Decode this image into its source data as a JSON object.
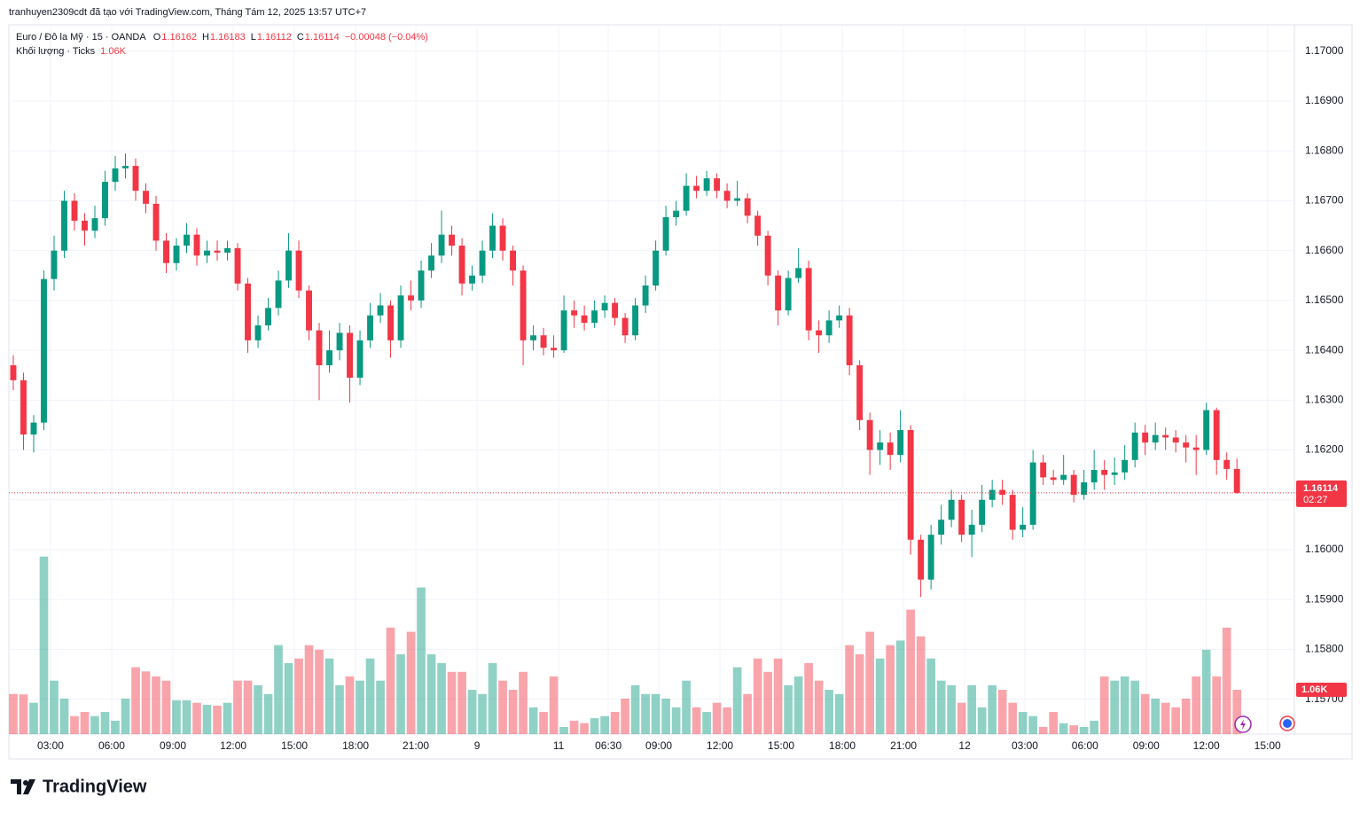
{
  "chart_data": {
    "type": "candlestick",
    "attribution": "tranhuyen2309cdt đã tạo với TradingView.com, Tháng Tám 12, 2025 13:57 UTC+7",
    "symbol": "Euro / Đô la Mỹ · 15 · OANDA",
    "ohlc_letters": [
      "O",
      "H",
      "L",
      "C"
    ],
    "change": "−0.00048 (−0.04%)",
    "countdown": "02:27",
    "brand": "TradingView",
    "up_color": "#089981",
    "down_color": "#f23645",
    "open": [
      1.1637,
      1.1634,
      1.16231,
      1.16255,
      1.16543,
      1.166,
      1.167,
      1.1666,
      1.1664,
      1.16665,
      1.16738,
      1.16765,
      1.1677,
      1.1672,
      1.16694,
      1.1662,
      1.16575,
      1.1661,
      1.16632,
      1.1659,
      1.166,
      1.16596,
      1.16605,
      1.16534,
      1.1642,
      1.1645,
      1.16485,
      1.1654,
      1.166,
      1.1652,
      1.1644,
      1.1637,
      1.164,
      1.16435,
      1.16345,
      1.1642,
      1.1647,
      1.1649,
      1.1642,
      1.1651,
      1.165,
      1.1656,
      1.1659,
      1.16632,
      1.1661,
      1.16534,
      1.1655,
      1.166,
      1.1665,
      1.166,
      1.1656,
      1.1642,
      1.1643,
      1.16405,
      1.164,
      1.1648,
      1.1647,
      1.16455,
      1.1648,
      1.16495,
      1.16465,
      1.1643,
      1.1649,
      1.1653,
      1.166,
      1.16667,
      1.1668,
      1.1673,
      1.1672,
      1.16745,
      1.1672,
      1.167,
      1.16705,
      1.1667,
      1.1663,
      1.1655,
      1.1648,
      1.16545,
      1.16565,
      1.1644,
      1.1643,
      1.1646,
      1.1647,
      1.1637,
      1.1626,
      1.162,
      1.16215,
      1.1619,
      1.1624,
      1.1602,
      1.1594,
      1.1603,
      1.1606,
      1.161,
      1.1603,
      1.1605,
      1.161,
      1.1612,
      1.1611,
      1.1604,
      1.1605,
      1.16175,
      1.16145,
      1.1614,
      1.1615,
      1.1611,
      1.16135,
      1.1616,
      1.1615,
      1.16155,
      1.1618,
      1.16235,
      1.16215,
      1.1623,
      1.16225,
      1.16215,
      1.16205,
      1.162,
      1.1628,
      1.1618,
      1.16162
    ],
    "high": [
      1.1639,
      1.16355,
      1.1627,
      1.1656,
      1.1663,
      1.1672,
      1.16715,
      1.16675,
      1.1669,
      1.1676,
      1.1679,
      1.16795,
      1.16785,
      1.16735,
      1.1671,
      1.16635,
      1.16625,
      1.16655,
      1.16645,
      1.1662,
      1.1662,
      1.1662,
      1.16615,
      1.16545,
      1.1647,
      1.16505,
      1.1656,
      1.16635,
      1.1662,
      1.1653,
      1.16455,
      1.1644,
      1.16455,
      1.1645,
      1.1644,
      1.16495,
      1.16515,
      1.165,
      1.1653,
      1.1654,
      1.1658,
      1.16615,
      1.1668,
      1.1665,
      1.16625,
      1.1657,
      1.1662,
      1.16675,
      1.16665,
      1.1661,
      1.1657,
      1.1645,
      1.16445,
      1.1643,
      1.1651,
      1.165,
      1.1649,
      1.165,
      1.1651,
      1.16505,
      1.16475,
      1.16505,
      1.1655,
      1.1662,
      1.1669,
      1.167,
      1.16755,
      1.1675,
      1.1676,
      1.16755,
      1.16735,
      1.1674,
      1.16715,
      1.1668,
      1.1664,
      1.1656,
      1.1656,
      1.16605,
      1.1658,
      1.1646,
      1.1648,
      1.1649,
      1.16485,
      1.1638,
      1.16275,
      1.1624,
      1.16235,
      1.1628,
      1.1625,
      1.1603,
      1.1605,
      1.1609,
      1.1612,
      1.1611,
      1.1608,
      1.1613,
      1.1614,
      1.1614,
      1.1612,
      1.16085,
      1.162,
      1.1619,
      1.1616,
      1.1619,
      1.1616,
      1.1616,
      1.162,
      1.1618,
      1.16185,
      1.1621,
      1.16255,
      1.1625,
      1.16255,
      1.16245,
      1.1624,
      1.1623,
      1.1623,
      1.16295,
      1.16285,
      1.16195,
      1.16183
    ],
    "low": [
      1.1632,
      1.162,
      1.16195,
      1.1624,
      1.1652,
      1.16585,
      1.1664,
      1.1661,
      1.16625,
      1.1665,
      1.1672,
      1.16745,
      1.167,
      1.16675,
      1.166,
      1.16555,
      1.1656,
      1.16595,
      1.1657,
      1.16575,
      1.1658,
      1.1658,
      1.1652,
      1.16395,
      1.16405,
      1.1644,
      1.1647,
      1.16525,
      1.16505,
      1.1642,
      1.163,
      1.16355,
      1.1638,
      1.16295,
      1.1633,
      1.16405,
      1.16455,
      1.16385,
      1.16405,
      1.1648,
      1.16485,
      1.16545,
      1.16575,
      1.1659,
      1.1651,
      1.1652,
      1.16535,
      1.16585,
      1.1658,
      1.1653,
      1.1637,
      1.164,
      1.1639,
      1.16385,
      1.16395,
      1.16445,
      1.1644,
      1.16445,
      1.16465,
      1.1645,
      1.16415,
      1.1642,
      1.16475,
      1.1652,
      1.1659,
      1.1665,
      1.1667,
      1.16705,
      1.1671,
      1.16705,
      1.16685,
      1.1669,
      1.16655,
      1.1661,
      1.1653,
      1.1645,
      1.1647,
      1.16535,
      1.1642,
      1.16395,
      1.16415,
      1.16445,
      1.1635,
      1.1624,
      1.1615,
      1.1617,
      1.1616,
      1.16175,
      1.1599,
      1.15905,
      1.1592,
      1.1601,
      1.16045,
      1.16015,
      1.15985,
      1.16035,
      1.16085,
      1.1609,
      1.1602,
      1.16025,
      1.1604,
      1.1613,
      1.1613,
      1.1613,
      1.16095,
      1.161,
      1.1612,
      1.1612,
      1.1613,
      1.1614,
      1.16165,
      1.1619,
      1.162,
      1.162,
      1.16195,
      1.16175,
      1.1615,
      1.1619,
      1.1615,
      1.1614,
      1.16112
    ],
    "close": [
      1.1634,
      1.16231,
      1.16255,
      1.16543,
      1.166,
      1.167,
      1.1666,
      1.1664,
      1.16665,
      1.16738,
      1.16765,
      1.1677,
      1.1672,
      1.16694,
      1.1662,
      1.16575,
      1.1661,
      1.16632,
      1.1659,
      1.166,
      1.16596,
      1.16605,
      1.16534,
      1.1642,
      1.1645,
      1.16485,
      1.1654,
      1.166,
      1.1652,
      1.1644,
      1.1637,
      1.164,
      1.16435,
      1.16345,
      1.1642,
      1.1647,
      1.1649,
      1.1642,
      1.1651,
      1.165,
      1.1656,
      1.1659,
      1.16632,
      1.1661,
      1.16534,
      1.1655,
      1.166,
      1.1665,
      1.166,
      1.1656,
      1.1642,
      1.1643,
      1.16405,
      1.164,
      1.1648,
      1.1647,
      1.16455,
      1.1648,
      1.16495,
      1.16465,
      1.1643,
      1.1649,
      1.1653,
      1.166,
      1.16667,
      1.1668,
      1.1673,
      1.1672,
      1.16745,
      1.1672,
      1.167,
      1.16705,
      1.1667,
      1.1663,
      1.1655,
      1.1648,
      1.16545,
      1.16565,
      1.1644,
      1.1643,
      1.1646,
      1.1647,
      1.1637,
      1.1626,
      1.162,
      1.16215,
      1.1619,
      1.1624,
      1.1602,
      1.1594,
      1.1603,
      1.1606,
      1.161,
      1.1603,
      1.1605,
      1.161,
      1.1612,
      1.1611,
      1.1604,
      1.1605,
      1.16175,
      1.16145,
      1.1614,
      1.1615,
      1.1611,
      1.16135,
      1.1616,
      1.1615,
      1.16155,
      1.1618,
      1.16235,
      1.16215,
      1.1623,
      1.16225,
      1.16215,
      1.16205,
      1.162,
      1.1628,
      1.1618,
      1.16162,
      1.16114
    ],
    "volume": {
      "name": "Khối lượng · Ticks",
      "last_label": "1.06K",
      "ylim": [
        0,
        9000
      ],
      "values": [
        960,
        950,
        750,
        4250,
        1280,
        850,
        430,
        530,
        430,
        530,
        320,
        850,
        1600,
        1500,
        1380,
        1280,
        810,
        810,
        750,
        700,
        680,
        750,
        1280,
        1280,
        1170,
        960,
        2130,
        1700,
        1810,
        2130,
        2020,
        1810,
        1170,
        1380,
        1280,
        1810,
        1280,
        2550,
        1910,
        2450,
        3510,
        1910,
        1700,
        1490,
        1490,
        1060,
        960,
        1700,
        1280,
        1060,
        1490,
        640,
        530,
        1380,
        170,
        320,
        260,
        380,
        430,
        530,
        850,
        1170,
        960,
        960,
        850,
        640,
        1280,
        640,
        530,
        750,
        640,
        1600,
        960,
        1810,
        1490,
        1810,
        1170,
        1380,
        1700,
        1280,
        1060,
        960,
        2130,
        1910,
        2450,
        1810,
        2130,
        2240,
        2980,
        2340,
        1810,
        1280,
        1170,
        750,
        1170,
        640,
        1170,
        1060,
        750,
        530,
        430,
        170,
        530,
        260,
        210,
        170,
        320,
        1380,
        1280,
        1380,
        1280,
        960,
        850,
        750,
        640,
        850,
        1380,
        2020,
        1380,
        2550,
        1060
      ]
    },
    "ylim": [
      1.1563,
      1.17053
    ],
    "yticks": [
      {
        "value": 1.157,
        "label": "1.15700"
      },
      {
        "value": 1.158,
        "label": "1.15800"
      },
      {
        "value": 1.159,
        "label": "1.15900"
      },
      {
        "value": 1.16,
        "label": "1.16000"
      },
      {
        "value": 1.161,
        "label": "1.16100"
      },
      {
        "value": 1.162,
        "label": "1.16200"
      },
      {
        "value": 1.163,
        "label": "1.16300"
      },
      {
        "value": 1.164,
        "label": "1.16400"
      },
      {
        "value": 1.165,
        "label": "1.16500"
      },
      {
        "value": 1.166,
        "label": "1.16600"
      },
      {
        "value": 1.167,
        "label": "1.16700"
      },
      {
        "value": 1.168,
        "label": "1.16800"
      },
      {
        "value": 1.169,
        "label": "1.16900"
      },
      {
        "value": 1.17,
        "label": "1.17000"
      }
    ],
    "xlim": [
      -0.26,
      125.2
    ],
    "xticks": [
      {
        "value": 3.65,
        "label": "03:00"
      },
      {
        "value": 9.65,
        "label": "06:00"
      },
      {
        "value": 15.65,
        "label": "09:00"
      },
      {
        "value": 21.57,
        "label": "12:00"
      },
      {
        "value": 27.57,
        "label": "15:00"
      },
      {
        "value": 33.57,
        "label": "18:00"
      },
      {
        "value": 39.48,
        "label": "21:00"
      },
      {
        "value": 45.48,
        "label": "9"
      },
      {
        "value": 53.48,
        "label": "11"
      },
      {
        "value": 58.35,
        "label": "06:30"
      },
      {
        "value": 63.3,
        "label": "09:00"
      },
      {
        "value": 69.3,
        "label": "12:00"
      },
      {
        "value": 75.3,
        "label": "15:00"
      },
      {
        "value": 81.3,
        "label": "18:00"
      },
      {
        "value": 87.3,
        "label": "21:00"
      },
      {
        "value": 93.3,
        "label": "12"
      },
      {
        "value": 99.2,
        "label": "03:00"
      },
      {
        "value": 105.1,
        "label": "06:00"
      },
      {
        "value": 111.1,
        "label": "09:00"
      },
      {
        "value": 117.0,
        "label": "12:00"
      },
      {
        "value": 123.0,
        "label": "15:00"
      }
    ],
    "grid": true
  }
}
